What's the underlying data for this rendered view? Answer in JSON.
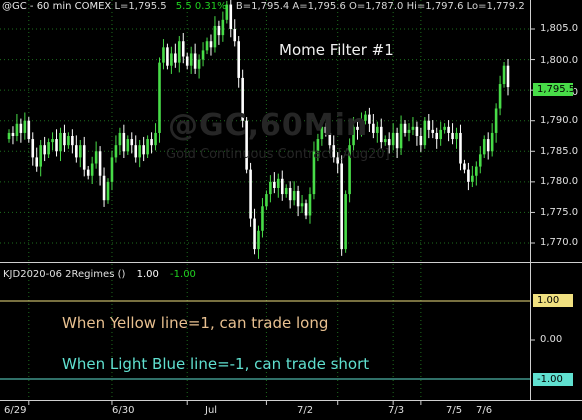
{
  "header": {
    "symbol": "@GC - 60 min  COMEX",
    "last": "L=1,795.5",
    "change": "5.5  0.31%",
    "quote": "B=1,795.4  A=1,795.6  O=1,787.0  Hi=1,797.6  Lo=1,779.2"
  },
  "title": "Mome Filter #1",
  "watermark": {
    "symbol": "@GC,60Min",
    "desc": "Gold Continuous Contract [Aug20]"
  },
  "indicator": {
    "label": "KJD2020-06 2Regimes ()",
    "value1": "1.00",
    "value2": "-1.00"
  },
  "notes": {
    "long": "When Yellow line=1, can trade long",
    "short": "When Light Blue line=-1, can trade short"
  },
  "price_tag": "1,795.5",
  "colors": {
    "up": "#48dc48",
    "down": "#ffffff",
    "yellow": "#f0e080",
    "blue": "#60e0d0",
    "tag_bg": "#48dc48"
  },
  "chart_data": [
    {
      "type": "candlestick",
      "title": "Mome Filter #1",
      "ylim": [
        1766,
        1811
      ],
      "y_ticks": [
        "1,805.0",
        "1,800.0",
        "1,795.0",
        "1,790.0",
        "1,785.0",
        "1,780.0",
        "1,775.0",
        "1,770.0"
      ],
      "y_tick_values": [
        1805,
        1800,
        1795,
        1790,
        1785,
        1780,
        1775,
        1770
      ],
      "x_labels": [
        "6/29",
        "6/30",
        "Jul",
        "7/2",
        "7/3",
        "7/5",
        "7/6"
      ],
      "x_label_bars": [
        5,
        26,
        45,
        65,
        83,
        97,
        104
      ],
      "close": [
        1788,
        1787.5,
        1789.5,
        1788,
        1790,
        1787,
        1784,
        1782.5,
        1786,
        1784.5,
        1786.5,
        1787,
        1785,
        1788,
        1786,
        1787.5,
        1786,
        1784,
        1786,
        1782,
        1781,
        1783,
        1785,
        1781,
        1777,
        1780,
        1784,
        1786,
        1788,
        1785,
        1787,
        1786,
        1784,
        1786,
        1784.5,
        1787,
        1786,
        1788,
        1799.5,
        1802,
        1799,
        1801,
        1799.5,
        1803,
        1800.5,
        1799,
        1801,
        1798.5,
        1800,
        1801.5,
        1803,
        1802,
        1805.5,
        1804,
        1806.5,
        1809,
        1805,
        1803,
        1797,
        1790,
        1782,
        1774,
        1769,
        1772,
        1776,
        1778,
        1780,
        1779,
        1780.5,
        1778,
        1779,
        1777,
        1778.5,
        1776,
        1776.5,
        1774.5,
        1778,
        1785,
        1787,
        1789,
        1788,
        1786,
        1784,
        1783,
        1769,
        1778,
        1786,
        1789,
        1788.5,
        1790,
        1791,
        1789.5,
        1788,
        1789,
        1786.5,
        1787,
        1786,
        1788,
        1785.5,
        1789.5,
        1788,
        1788.5,
        1789,
        1787.5,
        1786,
        1790,
        1788.5,
        1788,
        1787,
        1788.5,
        1789,
        1788,
        1787,
        1788,
        1783,
        1782,
        1780,
        1781,
        1782.5,
        1784.5,
        1787,
        1785,
        1788,
        1792,
        1796,
        1799,
        1795.5
      ]
    },
    {
      "type": "line",
      "title": "KJD2020-06 2Regimes ()",
      "ylim": [
        -1.3,
        1.3
      ],
      "y_ticks": [
        "1.00",
        "0.00",
        "-1.00"
      ],
      "y_tick_values": [
        1,
        0,
        -1
      ],
      "series": [
        {
          "name": "",
          "values": [
            1,
            1
          ]
        },
        {
          "name": "",
          "values": [
            -1,
            -1
          ]
        }
      ]
    }
  ]
}
